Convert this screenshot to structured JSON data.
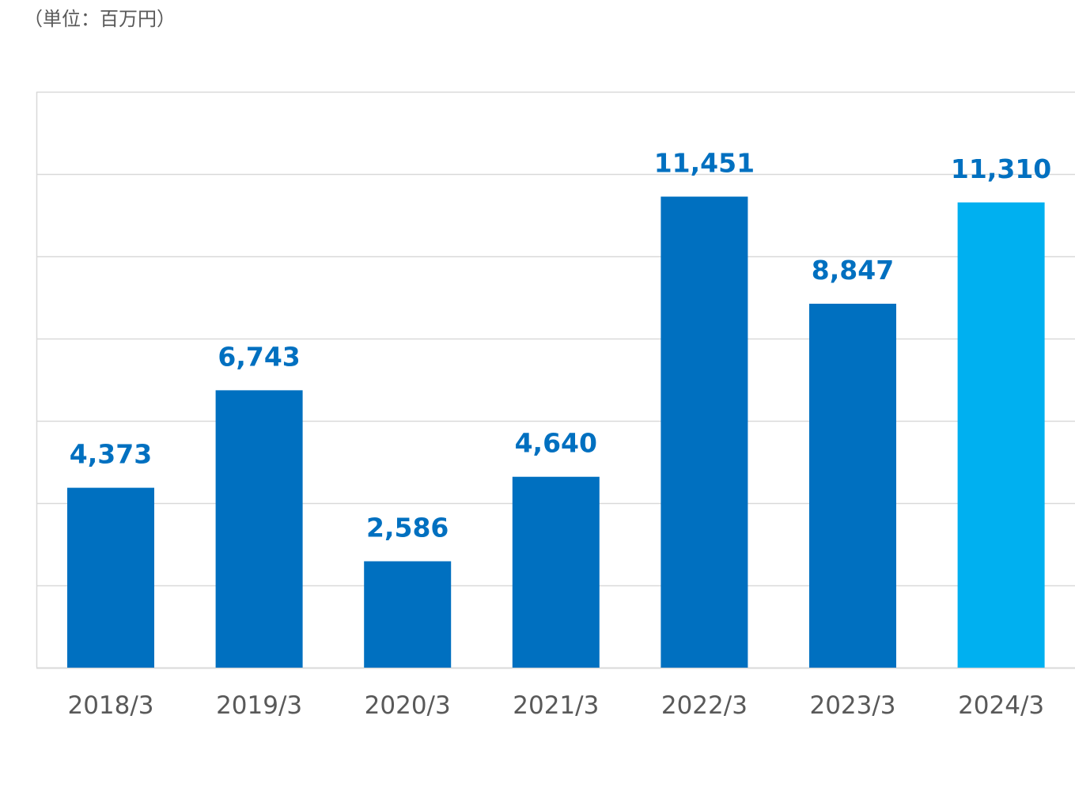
{
  "unit_label": "（単位：百万円）",
  "chart_data": {
    "type": "bar",
    "categories": [
      "2018/3",
      "2019/3",
      "2020/3",
      "2021/3",
      "2022/3",
      "2023/3",
      "2024/3"
    ],
    "values": [
      4373,
      6743,
      2586,
      4640,
      11451,
      8847,
      11310
    ],
    "value_labels": [
      "4,373",
      "6,743",
      "2,586",
      "4,640",
      "11,451",
      "8,847",
      "11,310"
    ],
    "ylim": [
      0,
      14000
    ],
    "gridline_step": 2000,
    "grid": true,
    "title": "",
    "xlabel": "",
    "ylabel": "",
    "colors": {
      "bar": "#0070c0",
      "highlight_bar": "#00b0f0",
      "value_label": "#0070c0",
      "grid": "#d9d9d9",
      "axis_text": "#595959"
    },
    "highlight_category": "2024/3"
  }
}
